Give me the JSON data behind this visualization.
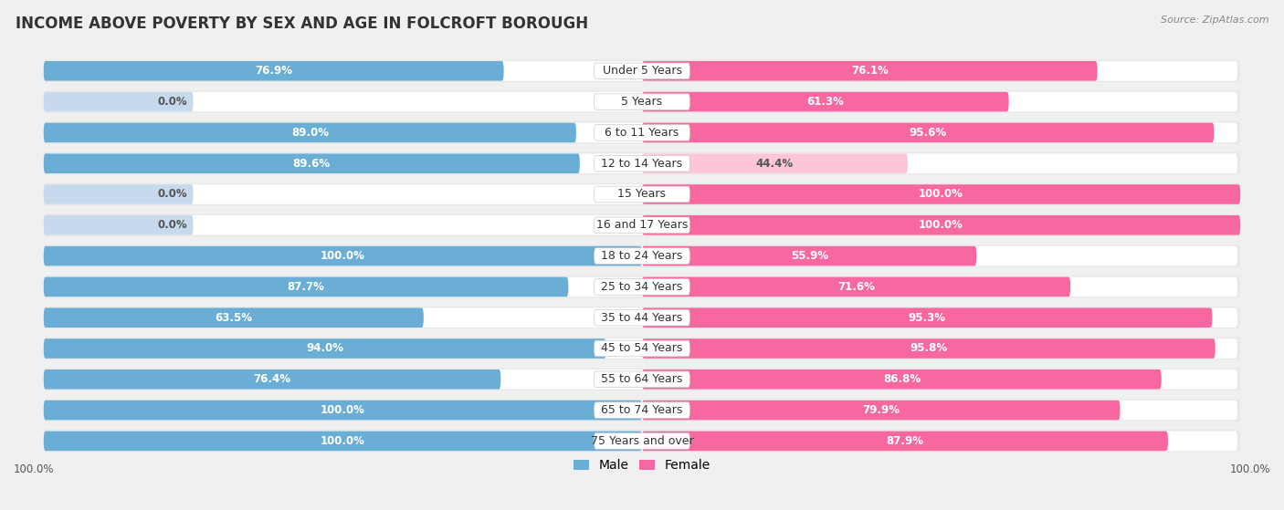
{
  "title": "INCOME ABOVE POVERTY BY SEX AND AGE IN FOLCROFT BOROUGH",
  "source": "Source: ZipAtlas.com",
  "categories": [
    "Under 5 Years",
    "5 Years",
    "6 to 11 Years",
    "12 to 14 Years",
    "15 Years",
    "16 and 17 Years",
    "18 to 24 Years",
    "25 to 34 Years",
    "35 to 44 Years",
    "45 to 54 Years",
    "55 to 64 Years",
    "65 to 74 Years",
    "75 Years and over"
  ],
  "male": [
    76.9,
    0.0,
    89.0,
    89.6,
    0.0,
    0.0,
    100.0,
    87.7,
    63.5,
    94.0,
    76.4,
    100.0,
    100.0
  ],
  "female": [
    76.1,
    61.3,
    95.6,
    44.4,
    100.0,
    100.0,
    55.9,
    71.6,
    95.3,
    95.8,
    86.8,
    79.9,
    87.9
  ],
  "male_color": "#6aaed6",
  "male_color_light": "#c6d9ed",
  "female_color": "#f768a1",
  "female_color_light": "#fcc5da",
  "row_bg_color": "#e8e8e8",
  "bar_bg_color": "#f0f0f0",
  "label_bg_color": "#ffffff",
  "bg_color": "#f0f0f0",
  "title_fontsize": 12,
  "label_fontsize": 9,
  "value_fontsize": 8.5,
  "source_fontsize": 8,
  "legend_fontsize": 10,
  "max_val": 100.0
}
